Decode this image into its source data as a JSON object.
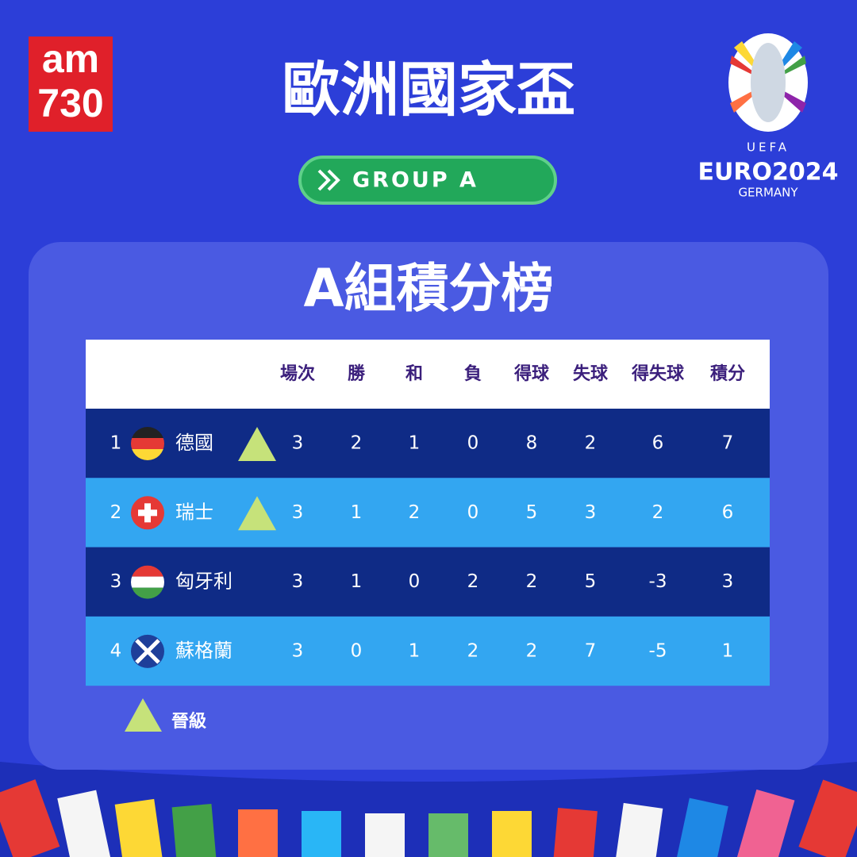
{
  "header": {
    "brand_top": "am",
    "brand_bottom": "730",
    "title": "歐洲國家盃",
    "badge": "GROUP A",
    "logo": {
      "org": "UEFA",
      "name": "EURO2024",
      "host": "GERMANY"
    }
  },
  "table": {
    "title": "A組積分榜",
    "columns": [
      "場次",
      "勝",
      "和",
      "負",
      "得球",
      "失球",
      "得失球",
      "積分"
    ],
    "rows": [
      {
        "rank": 1,
        "team": "德國",
        "qualified": true,
        "stats": [
          3,
          2,
          1,
          0,
          8,
          2,
          6,
          7
        ]
      },
      {
        "rank": 2,
        "team": "瑞士",
        "qualified": true,
        "stats": [
          3,
          1,
          2,
          0,
          5,
          3,
          2,
          6
        ]
      },
      {
        "rank": 3,
        "team": "匈牙利",
        "qualified": false,
        "stats": [
          3,
          1,
          0,
          2,
          2,
          5,
          -3,
          3
        ]
      },
      {
        "rank": 4,
        "team": "蘇格蘭",
        "qualified": false,
        "stats": [
          3,
          0,
          1,
          2,
          2,
          7,
          -5,
          1
        ]
      }
    ],
    "legend": "晉級"
  }
}
